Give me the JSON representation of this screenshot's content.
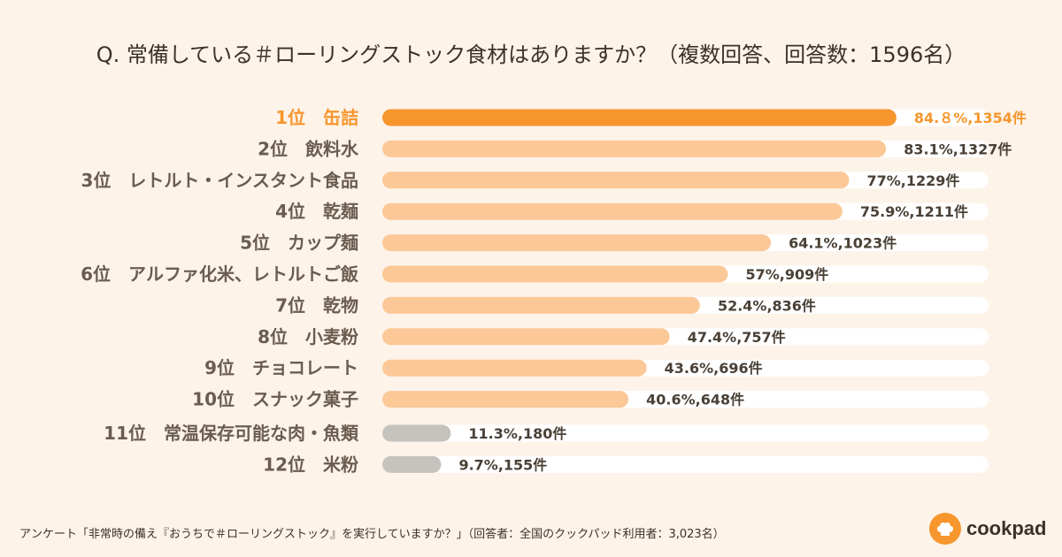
{
  "chart_data": {
    "type": "bar",
    "orientation": "horizontal",
    "title": "Q. 常備している＃ローリングストック食材はありますか？（複数回答、回答数：1596名）",
    "xlim": [
      0,
      100
    ],
    "unit": "%",
    "categories": [
      "1位　缶詰",
      "2位　飲料水",
      "3位　レトルト・インスタント食品",
      "4位　乾麺",
      "5位　カップ麺",
      "6位　アルファ化米、レトルトご飯",
      "7位　乾物",
      "8位　小麦粉",
      "9位　チョコレート",
      "10位　スナック菓子",
      "11位　常温保存可能な肉・魚類",
      "12位　米粉"
    ],
    "values": [
      84.8,
      83.1,
      77,
      75.9,
      64.1,
      57,
      52.4,
      47.4,
      43.6,
      40.6,
      11.3,
      9.7
    ],
    "counts": [
      1354,
      1327,
      1229,
      1211,
      1023,
      909,
      836,
      757,
      696,
      648,
      180,
      155
    ],
    "value_labels": [
      "84.８%,1354件",
      "83.1%,1327件",
      "77%,1229件",
      "75.9%,1211件",
      "64.1%,1023件",
      "57%,909件",
      "52.4%,836件",
      "47.4%,757件",
      "43.6%,696件",
      "40.6%,648件",
      "11.3%,180件",
      "9.7%,155件"
    ],
    "bar_styles": [
      "top",
      "main",
      "main",
      "main",
      "main",
      "main",
      "main",
      "main",
      "main",
      "main",
      "minor",
      "minor"
    ]
  },
  "colors": {
    "background": "#fdf3e9",
    "track": "#ffffff",
    "top_bar": "#f7962c",
    "main_bar": "#fcc897",
    "minor_bar": "#c5c3bd",
    "top_text": "#f7962c",
    "label_text": "#6a5d4f"
  },
  "footer": "アンケート「非常時の備え『おうちで＃ローリングストック』を実行していますか？」（回答者：全国のクックパッド利用者：3,023名）",
  "logo": {
    "text": "cookpad",
    "icon": "chef-hat-icon"
  }
}
